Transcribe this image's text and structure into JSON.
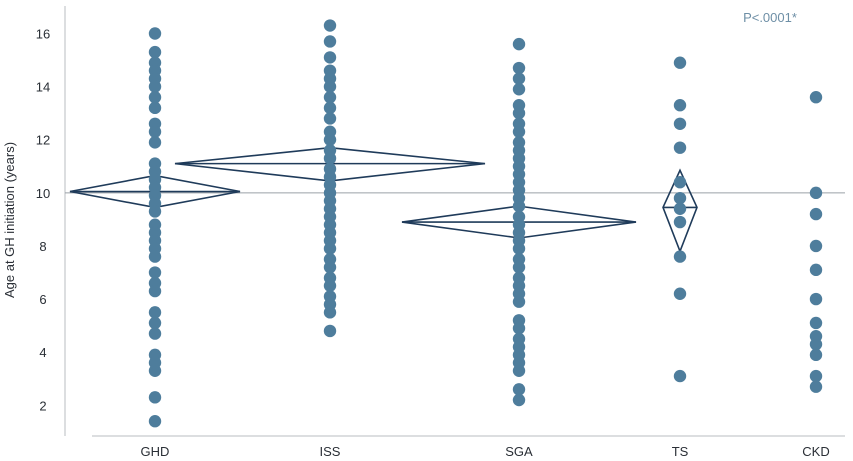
{
  "chart_data": {
    "type": "scatter",
    "title": "",
    "xlabel": "",
    "ylabel": "Age at GH initiation (years)",
    "categories": [
      "GHD",
      "ISS",
      "SGA",
      "TS",
      "CKD"
    ],
    "yticks": [
      2,
      4,
      6,
      8,
      10,
      12,
      14,
      16
    ],
    "ylim": [
      0.5,
      16.8
    ],
    "reference_line": 10,
    "annotation": "P<.0001*",
    "grid": false,
    "colors": {
      "points": "#4e7d9c",
      "diamond": "#1f3b5a",
      "reference_line": "#9aa1a8",
      "annotation": "#6e8fa6",
      "axis": "#b8bcc0"
    },
    "series": [
      {
        "category": "GHD",
        "values": [
          16.0,
          15.3,
          14.9,
          14.6,
          14.3,
          14.0,
          13.6,
          13.2,
          12.6,
          12.3,
          11.9,
          11.1,
          10.8,
          10.5,
          10.2,
          9.9,
          9.6,
          9.3,
          8.8,
          8.5,
          8.2,
          7.9,
          7.6,
          7.0,
          6.6,
          6.3,
          5.5,
          5.1,
          4.7,
          3.9,
          3.6,
          3.3,
          2.3,
          1.4
        ]
      },
      {
        "category": "ISS",
        "values": [
          16.3,
          15.7,
          15.1,
          14.6,
          14.3,
          14.0,
          13.6,
          13.2,
          12.8,
          12.3,
          12.0,
          11.6,
          11.3,
          10.9,
          10.6,
          10.3,
          10.0,
          9.7,
          9.4,
          9.1,
          8.8,
          8.5,
          8.2,
          7.9,
          7.5,
          7.2,
          6.8,
          6.5,
          6.1,
          5.8,
          5.5,
          4.8
        ]
      },
      {
        "category": "SGA",
        "values": [
          15.6,
          14.7,
          14.3,
          13.9,
          13.3,
          13.0,
          12.6,
          12.3,
          11.9,
          11.6,
          11.3,
          11.0,
          10.7,
          10.4,
          10.1,
          9.8,
          9.5,
          9.1,
          8.8,
          8.5,
          8.2,
          7.9,
          7.5,
          7.2,
          6.8,
          6.5,
          6.2,
          5.9,
          5.2,
          4.9,
          4.5,
          4.2,
          3.9,
          3.6,
          3.3,
          2.6,
          2.2
        ]
      },
      {
        "category": "TS",
        "values": [
          14.9,
          13.3,
          12.6,
          11.7,
          10.4,
          9.8,
          9.4,
          8.9,
          7.6,
          6.2,
          3.1
        ]
      },
      {
        "category": "CKD",
        "values": [
          13.6,
          10.0,
          9.2,
          8.0,
          7.1,
          6.0,
          5.1,
          4.6,
          4.3,
          3.9,
          3.1,
          2.7
        ]
      }
    ],
    "diamonds": [
      {
        "category": "GHD",
        "mean": 10.05,
        "lower": 9.45,
        "upper": 10.65
      },
      {
        "category": "ISS",
        "mean": 11.1,
        "lower": 10.45,
        "upper": 11.7
      },
      {
        "category": "SGA",
        "mean": 8.9,
        "lower": 8.3,
        "upper": 9.5
      },
      {
        "category": "TS",
        "mean": 9.45,
        "lower": 7.8,
        "upper": 10.85
      }
    ]
  }
}
